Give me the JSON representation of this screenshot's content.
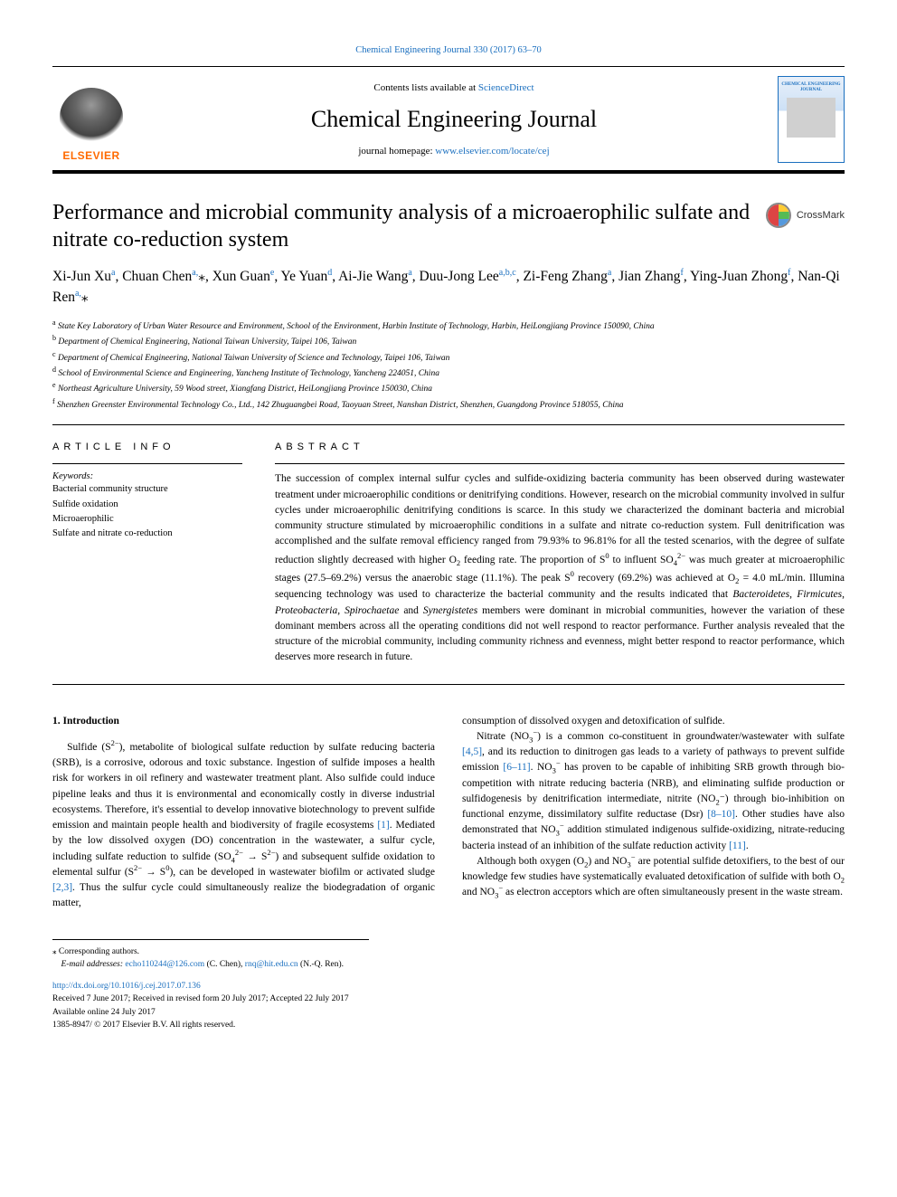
{
  "colors": {
    "link": "#1a6fbf",
    "text": "#000000",
    "elsevier_orange": "#ff6a00",
    "background": "#ffffff"
  },
  "typography": {
    "body_font": "Georgia, 'Times New Roman', serif",
    "title_size_pt": 24,
    "journal_name_size_pt": 26,
    "body_size_pt": 11.5,
    "abstract_size_pt": 11.5,
    "affiliation_size_pt": 9.5
  },
  "header": {
    "running_head": "Chemical Engineering Journal 330 (2017) 63–70",
    "contents_prefix": "Contents lists available at ",
    "contents_link": "ScienceDirect",
    "journal_name": "Chemical Engineering Journal",
    "homepage_prefix": "journal homepage: ",
    "homepage_url": "www.elsevier.com/locate/cej",
    "elsevier_label": "ELSEVIER",
    "cover_thumb_title": "CHEMICAL ENGINEERING JOURNAL"
  },
  "crossmark": {
    "label": "CrossMark"
  },
  "article": {
    "title": "Performance and microbial community analysis of a microaerophilic sulfate and nitrate co-reduction system",
    "authors_html": "Xi-Jun Xu<sup>a</sup>, Chuan Chen<sup>a,</sup><span class='star'>⁎</span>, Xun Guan<sup>e</sup>, Ye Yuan<sup>d</sup>, Ai-Jie Wang<sup>a</sup>, Duu-Jong Lee<sup>a,b,c</sup>, Zi-Feng Zhang<sup>a</sup>, Jian Zhang<sup>f</sup>, Ying-Juan Zhong<sup>f</sup>, Nan-Qi Ren<sup>a,</sup><span class='star'>⁎</span>",
    "affiliations": [
      {
        "sup": "a",
        "text": "State Key Laboratory of Urban Water Resource and Environment, School of the Environment, Harbin Institute of Technology, Harbin, HeiLongjiang Province 150090, China"
      },
      {
        "sup": "b",
        "text": "Department of Chemical Engineering, National Taiwan University, Taipei 106, Taiwan"
      },
      {
        "sup": "c",
        "text": "Department of Chemical Engineering, National Taiwan University of Science and Technology, Taipei 106, Taiwan"
      },
      {
        "sup": "d",
        "text": "School of Environmental Science and Engineering, Yancheng Institute of Technology, Yancheng 224051, China"
      },
      {
        "sup": "e",
        "text": "Northeast Agriculture University, 59 Wood street, Xiangfang District, HeiLongjiang Province 150030, China"
      },
      {
        "sup": "f",
        "text": "Shenzhen Greenster Environmental Technology Co., Ltd., 142 Zhuguangbei Road, Taoyuan Street, Nanshan District, Shenzhen, Guangdong Province 518055, China"
      }
    ]
  },
  "article_info": {
    "heading": "ARTICLE INFO",
    "keywords_label": "Keywords:",
    "keywords": [
      "Bacterial community structure",
      "Sulfide oxidation",
      "Microaerophilic",
      "Sulfate and nitrate co-reduction"
    ]
  },
  "abstract": {
    "heading": "ABSTRACT",
    "text": "The succession of complex internal sulfur cycles and sulfide-oxidizing bacteria community has been observed during wastewater treatment under microaerophilic conditions or denitrifying conditions. However, research on the microbial community involved in sulfur cycles under microaerophilic denitrifying conditions is scarce. In this study we characterized the dominant bacteria and microbial community structure stimulated by microaerophilic conditions in a sulfate and nitrate co-reduction system. Full denitrification was accomplished and the sulfate removal efficiency ranged from 79.93% to 96.81% for all the tested scenarios, with the degree of sulfate reduction slightly decreased with higher O₂ feeding rate. The proportion of S⁰ to influent SO₄²⁻ was much greater at microaerophilic stages (27.5–69.2%) versus the anaerobic stage (11.1%). The peak S⁰ recovery (69.2%) was achieved at O₂ = 4.0 mL/min. Illumina sequencing technology was used to characterize the bacterial community and the results indicated that Bacteroidetes, Firmicutes, Proteobacteria, Spirochaetae and Synergistetes members were dominant in microbial communities, however the variation of these dominant members across all the operating conditions did not well respond to reactor performance. Further analysis revealed that the structure of the microbial community, including community richness and evenness, might better respond to reactor performance, which deserves more research in future."
  },
  "body": {
    "section_heading": "1. Introduction",
    "col1_p1": "Sulfide (S²⁻), metabolite of biological sulfate reduction by sulfate reducing bacteria (SRB), is a corrosive, odorous and toxic substance. Ingestion of sulfide imposes a health risk for workers in oil refinery and wastewater treatment plant. Also sulfide could induce pipeline leaks and thus it is environmental and economically costly in diverse industrial ecosystems. Therefore, it's essential to develop innovative biotechnology to prevent sulfide emission and maintain people health and biodiversity of fragile ecosystems [1]. Mediated by the low dissolved oxygen (DO) concentration in the wastewater, a sulfur cycle, including sulfate reduction to sulfide (SO₄²⁻ → S²⁻) and subsequent sulfide oxidation to elemental sulfur (S²⁻ → S⁰), can be developed in wastewater biofilm or activated sludge [2,3]. Thus the sulfur cycle could simultaneously realize the biodegradation of organic matter,",
    "col2_p0": "consumption of dissolved oxygen and detoxification of sulfide.",
    "col2_p1": "Nitrate (NO₃⁻) is a common co-constituent in groundwater/wastewater with sulfate [4,5], and its reduction to dinitrogen gas leads to a variety of pathways to prevent sulfide emission [6–11]. NO₃⁻ has proven to be capable of inhibiting SRB growth through bio-competition with nitrate reducing bacteria (NRB), and eliminating sulfide production or sulfidogenesis by denitrification intermediate, nitrite (NO₂⁻) through bio-inhibition on functional enzyme, dissimilatory sulfite reductase (Dsr) [8–10]. Other studies have also demonstrated that NO₃⁻ addition stimulated indigenous sulfide-oxidizing, nitrate-reducing bacteria instead of an inhibition of the sulfate reduction activity [11].",
    "col2_p2": "Although both oxygen (O₂) and NO₃⁻ are potential sulfide detoxifiers, to the best of our knowledge few studies have systematically evaluated detoxification of sulfide with both O₂ and NO₃⁻ as electron acceptors which are often simultaneously present in the waste stream.",
    "refs": {
      "r1": "[1]",
      "r23": "[2,3]",
      "r45": "[4,5]",
      "r611": "[6–11]",
      "r810": "[8–10]",
      "r11": "[11]"
    }
  },
  "footnotes": {
    "corresponding": "Corresponding authors.",
    "email_label": "E-mail addresses: ",
    "email1": "echo110244@126.com",
    "email1_name": " (C. Chen), ",
    "email2": "rnq@hit.edu.cn",
    "email2_name": " (N.-Q. Ren)."
  },
  "pub": {
    "doi": "http://dx.doi.org/10.1016/j.cej.2017.07.136",
    "history": "Received 7 June 2017; Received in revised form 20 July 2017; Accepted 22 July 2017",
    "online": "Available online 24 July 2017",
    "copyright": "1385-8947/ © 2017 Elsevier B.V. All rights reserved."
  }
}
